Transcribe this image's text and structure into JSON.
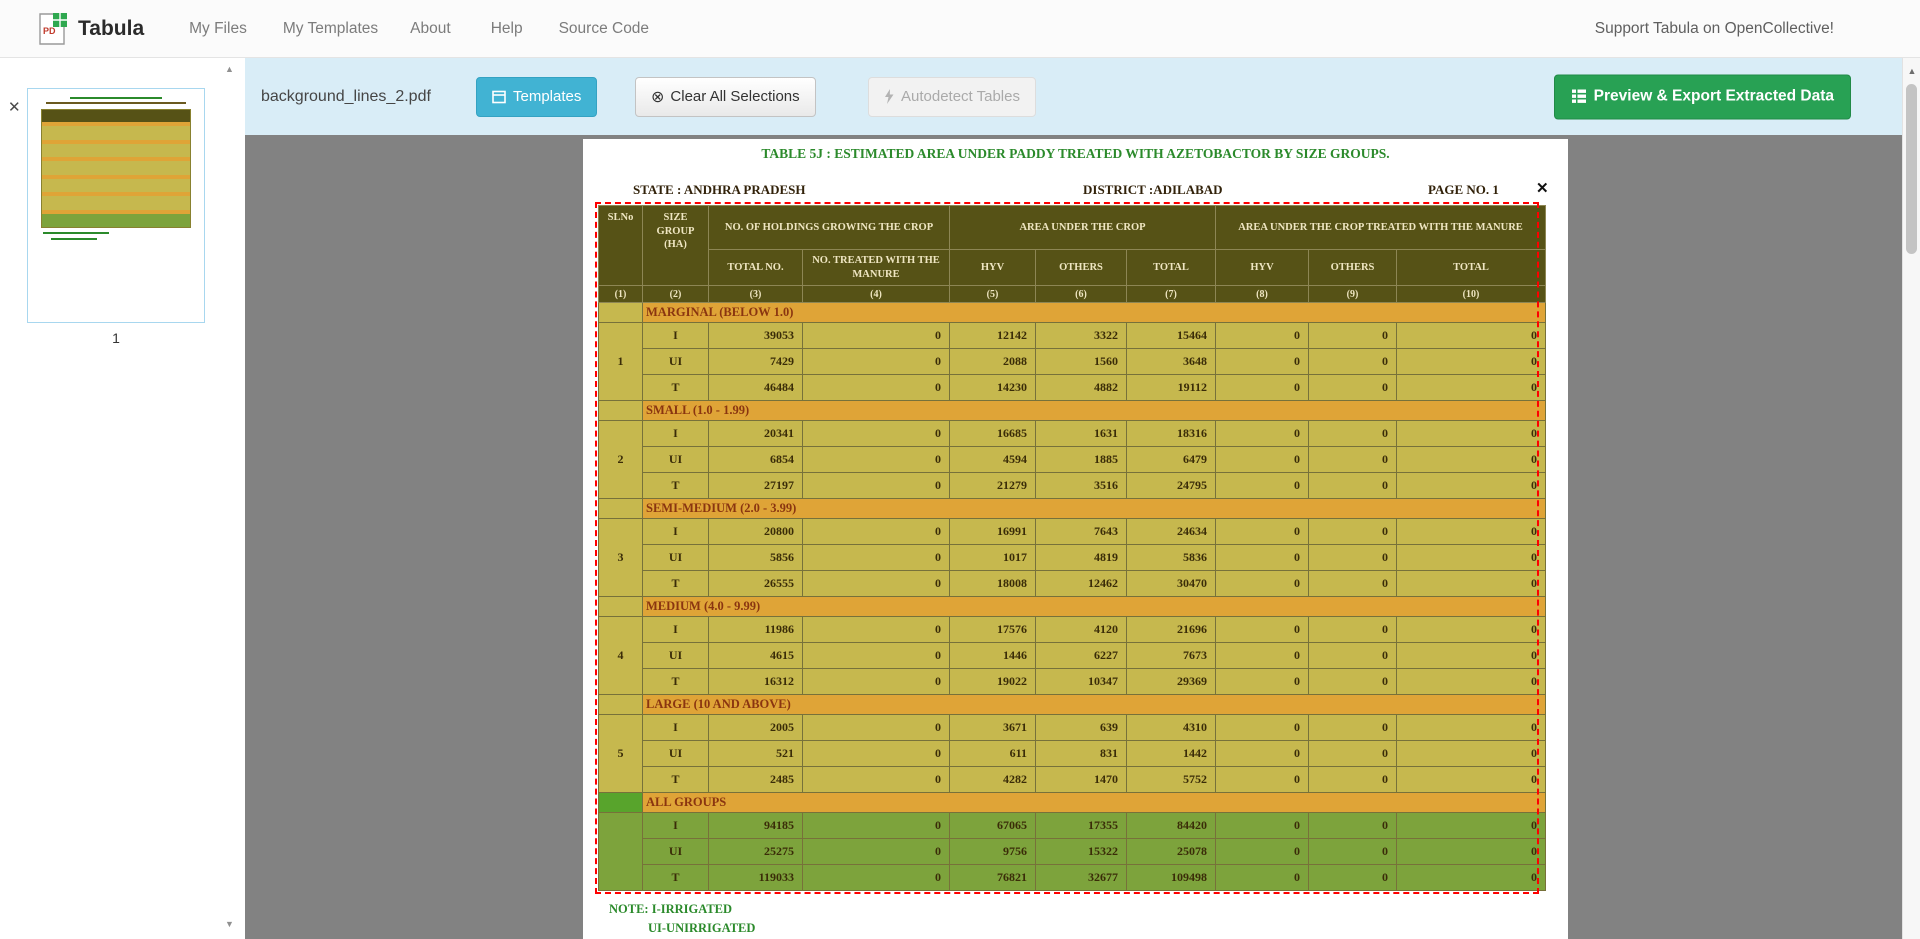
{
  "navbar": {
    "brand": "Tabula",
    "items": [
      "My Files",
      "My Templates",
      "About",
      "Help",
      "Source Code"
    ],
    "support": "Support Tabula on OpenCollective!"
  },
  "toolbar": {
    "filename": "background_lines_2.pdf",
    "templates": "Templates",
    "clear_selections": "Clear All Selections",
    "autodetect": "Autodetect Tables",
    "export": "Preview & Export Extracted Data"
  },
  "sidebar": {
    "page_label": "1"
  },
  "icons": {
    "clear": "⊗",
    "close": "✕",
    "remove_selection": "✕",
    "scroll_up": "▲",
    "scroll_down": "▼"
  },
  "pdf": {
    "title": "TABLE 5J : ESTIMATED AREA UNDER PADDY TREATED WITH AZETOBACTOR BY SIZE GROUPS.",
    "state": "STATE : ANDHRA PRADESH",
    "district": "DISTRICT :ADILABAD",
    "page_no": "PAGE NO. 1",
    "note_line1": "NOTE: I-IRRIGATED",
    "note_line2": "UI-UNIRRIGATED",
    "table": {
      "header": {
        "sl_no": "SLNo",
        "size_group": "SIZE GROUP (HA)",
        "holdings": "NO. OF HOLDINGS GROWING THE CROP",
        "area": "AREA UNDER THE CROP",
        "treated": "AREA UNDER THE CROP TREATED WITH THE MANURE",
        "sub_headers": [
          "TOTAL NO.",
          "NO. TREATED WITH THE MANURE",
          "HYV",
          "OTHERS",
          "TOTAL",
          "HYV",
          "OTHERS",
          "TOTAL"
        ],
        "col_numbers": [
          "(1)",
          "(2)",
          "(3)",
          "(4)",
          "(5)",
          "(6)",
          "(7)",
          "(8)",
          "(9)",
          "(10)"
        ]
      },
      "groups": [
        {
          "sl_no": "1",
          "label": "MARGINAL (BELOW 1.0)",
          "all_groups": false,
          "rows": [
            {
              "type": "I",
              "values": [
                "39053",
                "0",
                "12142",
                "3322",
                "15464",
                "0",
                "0",
                "0"
              ]
            },
            {
              "type": "UI",
              "values": [
                "7429",
                "0",
                "2088",
                "1560",
                "3648",
                "0",
                "0",
                "0"
              ]
            },
            {
              "type": "T",
              "values": [
                "46484",
                "0",
                "14230",
                "4882",
                "19112",
                "0",
                "0",
                "0"
              ]
            }
          ]
        },
        {
          "sl_no": "2",
          "label": "SMALL (1.0 - 1.99)",
          "all_groups": false,
          "rows": [
            {
              "type": "I",
              "values": [
                "20341",
                "0",
                "16685",
                "1631",
                "18316",
                "0",
                "0",
                "0"
              ]
            },
            {
              "type": "UI",
              "values": [
                "6854",
                "0",
                "4594",
                "1885",
                "6479",
                "0",
                "0",
                "0"
              ]
            },
            {
              "type": "T",
              "values": [
                "27197",
                "0",
                "21279",
                "3516",
                "24795",
                "0",
                "0",
                "0"
              ]
            }
          ]
        },
        {
          "sl_no": "3",
          "label": "SEMI-MEDIUM (2.0 - 3.99)",
          "all_groups": false,
          "rows": [
            {
              "type": "I",
              "values": [
                "20800",
                "0",
                "16991",
                "7643",
                "24634",
                "0",
                "0",
                "0"
              ]
            },
            {
              "type": "UI",
              "values": [
                "5856",
                "0",
                "1017",
                "4819",
                "5836",
                "0",
                "0",
                "0"
              ]
            },
            {
              "type": "T",
              "values": [
                "26555",
                "0",
                "18008",
                "12462",
                "30470",
                "0",
                "0",
                "0"
              ]
            }
          ]
        },
        {
          "sl_no": "4",
          "label": "MEDIUM (4.0 - 9.99)",
          "all_groups": false,
          "rows": [
            {
              "type": "I",
              "values": [
                "11986",
                "0",
                "17576",
                "4120",
                "21696",
                "0",
                "0",
                "0"
              ]
            },
            {
              "type": "UI",
              "values": [
                "4615",
                "0",
                "1446",
                "6227",
                "7673",
                "0",
                "0",
                "0"
              ]
            },
            {
              "type": "T",
              "values": [
                "16312",
                "0",
                "19022",
                "10347",
                "29369",
                "0",
                "0",
                "0"
              ]
            }
          ]
        },
        {
          "sl_no": "5",
          "label": "LARGE (10 AND ABOVE)",
          "all_groups": false,
          "rows": [
            {
              "type": "I",
              "values": [
                "2005",
                "0",
                "3671",
                "639",
                "4310",
                "0",
                "0",
                "0"
              ]
            },
            {
              "type": "UI",
              "values": [
                "521",
                "0",
                "611",
                "831",
                "1442",
                "0",
                "0",
                "0"
              ]
            },
            {
              "type": "T",
              "values": [
                "2485",
                "0",
                "4282",
                "1470",
                "5752",
                "0",
                "0",
                "0"
              ]
            }
          ]
        },
        {
          "sl_no": "",
          "label": "ALL GROUPS",
          "all_groups": true,
          "rows": [
            {
              "type": "I",
              "values": [
                "94185",
                "0",
                "67065",
                "17355",
                "84420",
                "0",
                "0",
                "0"
              ]
            },
            {
              "type": "UI",
              "values": [
                "25275",
                "0",
                "9756",
                "15322",
                "25078",
                "0",
                "0",
                "0"
              ]
            },
            {
              "type": "T",
              "values": [
                "119033",
                "0",
                "76821",
                "32677",
                "109498",
                "0",
                "0",
                "0"
              ]
            }
          ]
        }
      ]
    }
  },
  "colors": {
    "toolbar_bg": "#d9edf7",
    "templates_btn": "#41b3d3",
    "export_btn": "#28a154",
    "selection_border": "#ff0000",
    "table_header_bg": "#565216",
    "table_row_bg": "#c6b84e",
    "group_row_bg": "#dfa437",
    "all_groups_row_bg": "#7da33c",
    "all_groups_sl_bg": "#58a42c",
    "doc_title_green": "#2b8a2b"
  }
}
